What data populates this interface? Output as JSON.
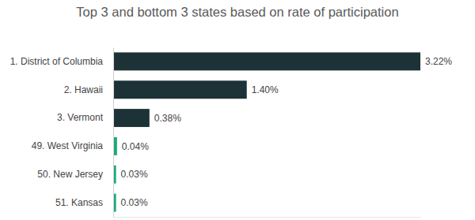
{
  "chart_data": {
    "type": "bar",
    "orientation": "horizontal",
    "title": "Top 3 and bottom 3 states based on rate of participation",
    "categories": [
      "1. District of Columbia",
      "2. Hawaii",
      "3. Vermont",
      "49. West Virginia",
      "50. New Jersey",
      "51. Kansas"
    ],
    "values": [
      3.22,
      1.4,
      0.38,
      0.04,
      0.03,
      0.03
    ],
    "value_labels": [
      "3.22%",
      "1.40%",
      "0.38%",
      "0.04%",
      "0.03%",
      "0.03%"
    ],
    "colors": [
      "#1d3236",
      "#1d3236",
      "#1d3236",
      "#1aa97b",
      "#1aa97b",
      "#1aa97b"
    ],
    "xlim": [
      0,
      3.22
    ],
    "data_labels": true,
    "tick_labels": "y",
    "grid": false
  }
}
